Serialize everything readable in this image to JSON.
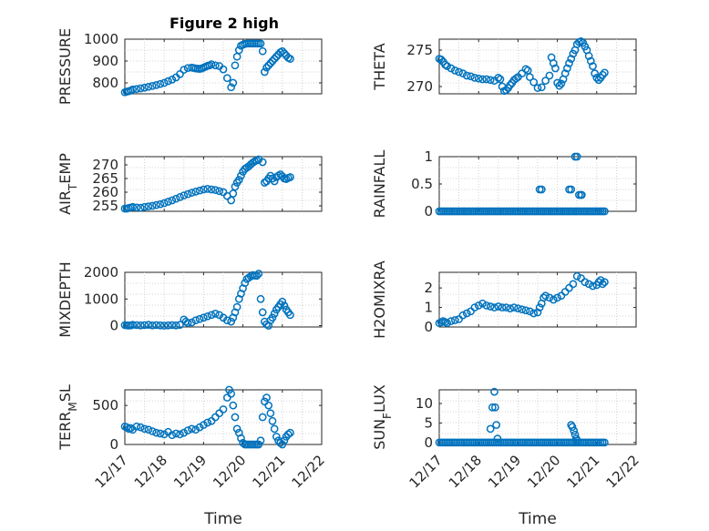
{
  "figure": {
    "title": "Figure 2 high"
  },
  "chart_data": [
    {
      "type": "scatter",
      "ylabel": "PRESSURE",
      "xlabel": "",
      "xlim": [
        0,
        5
      ],
      "ylim": [
        750,
        1000
      ],
      "yticks": [
        800,
        900,
        1000
      ],
      "yticklabels": [
        "800",
        "900",
        "1000"
      ],
      "xticklabels": [],
      "grid": true,
      "x": [
        0.0,
        0.05,
        0.1,
        0.15,
        0.2,
        0.3,
        0.4,
        0.5,
        0.6,
        0.7,
        0.8,
        0.9,
        1.0,
        1.1,
        1.2,
        1.3,
        1.4,
        1.5,
        1.6,
        1.7,
        1.75,
        1.8,
        1.85,
        1.9,
        1.95,
        2.0,
        2.05,
        2.1,
        2.15,
        2.2,
        2.3,
        2.4,
        2.5,
        2.6,
        2.7,
        2.75,
        2.8,
        2.85,
        2.9,
        2.95,
        3.0,
        3.05,
        3.1,
        3.15,
        3.2,
        3.25,
        3.3,
        3.35,
        3.4,
        3.45,
        3.5,
        3.55,
        3.6,
        3.65,
        3.7,
        3.75,
        3.8,
        3.85,
        3.9,
        3.95,
        4.0,
        4.05,
        4.1,
        4.15,
        4.2
      ],
      "y": [
        757,
        760,
        762,
        765,
        770,
        772,
        775,
        778,
        782,
        786,
        790,
        795,
        800,
        808,
        815,
        825,
        840,
        860,
        868,
        870,
        868,
        866,
        865,
        864,
        866,
        870,
        874,
        878,
        880,
        885,
        880,
        877,
        862,
        822,
        780,
        800,
        880,
        920,
        950,
        970,
        975,
        978,
        980,
        980,
        980,
        980,
        980,
        980,
        980,
        980,
        945,
        850,
        870,
        880,
        890,
        900,
        910,
        920,
        930,
        940,
        945,
        935,
        925,
        915,
        910
      ]
    },
    {
      "type": "scatter",
      "ylabel": "THETA",
      "xlabel": "",
      "xlim": [
        0,
        5
      ],
      "ylim": [
        269,
        276.5
      ],
      "yticks": [
        270,
        275
      ],
      "yticklabels": [
        "270",
        "275"
      ],
      "xticklabels": [],
      "grid": true,
      "x": [
        0.0,
        0.05,
        0.1,
        0.15,
        0.2,
        0.3,
        0.4,
        0.5,
        0.6,
        0.7,
        0.8,
        0.9,
        1.0,
        1.1,
        1.2,
        1.3,
        1.4,
        1.5,
        1.55,
        1.6,
        1.65,
        1.7,
        1.75,
        1.8,
        1.85,
        1.9,
        1.95,
        2.0,
        2.1,
        2.2,
        2.25,
        2.3,
        2.4,
        2.5,
        2.6,
        2.7,
        2.8,
        2.85,
        2.9,
        2.95,
        3.0,
        3.05,
        3.1,
        3.15,
        3.2,
        3.25,
        3.3,
        3.35,
        3.4,
        3.45,
        3.5,
        3.55,
        3.6,
        3.65,
        3.7,
        3.75,
        3.8,
        3.85,
        3.9,
        3.95,
        4.0,
        4.05,
        4.1,
        4.15,
        4.2
      ],
      "y": [
        273.8,
        273.7,
        273.4,
        273.0,
        272.8,
        272.5,
        272.2,
        272.0,
        271.8,
        271.5,
        271.4,
        271.2,
        271.1,
        271.0,
        271.0,
        270.9,
        270.8,
        271.2,
        271.0,
        270.0,
        269.4,
        269.5,
        269.8,
        270.2,
        270.5,
        270.9,
        271.1,
        271.3,
        271.8,
        272.4,
        272.2,
        271.3,
        270.6,
        269.8,
        269.9,
        270.8,
        271.5,
        274.0,
        273.2,
        272.5,
        270.5,
        270.1,
        270.4,
        271.0,
        271.8,
        272.5,
        273.2,
        273.8,
        274.5,
        275.0,
        275.8,
        276.1,
        276.2,
        276.0,
        275.5,
        275.0,
        274.2,
        273.5,
        272.8,
        271.8,
        271.2,
        270.9,
        271.2,
        271.6,
        271.9
      ]
    },
    {
      "type": "scatter",
      "ylabel": "AIR_T_EMP",
      "xlabel": "",
      "xlim": [
        0,
        5
      ],
      "ylim": [
        253,
        273
      ],
      "yticks": [
        255,
        260,
        265,
        270
      ],
      "yticklabels": [
        "255",
        "260",
        "265",
        "270"
      ],
      "xticklabels": [],
      "grid": true,
      "x": [
        0.0,
        0.05,
        0.1,
        0.15,
        0.2,
        0.3,
        0.4,
        0.5,
        0.6,
        0.7,
        0.8,
        0.9,
        1.0,
        1.1,
        1.2,
        1.3,
        1.4,
        1.5,
        1.6,
        1.7,
        1.8,
        1.9,
        2.0,
        2.1,
        2.2,
        2.3,
        2.4,
        2.5,
        2.6,
        2.7,
        2.75,
        2.8,
        2.85,
        2.9,
        2.95,
        3.0,
        3.05,
        3.1,
        3.15,
        3.2,
        3.25,
        3.3,
        3.35,
        3.4,
        3.5,
        3.55,
        3.6,
        3.65,
        3.7,
        3.75,
        3.8,
        3.85,
        3.9,
        3.95,
        4.0,
        4.05,
        4.1,
        4.15,
        4.2
      ],
      "y": [
        254.0,
        254.0,
        254.2,
        254.4,
        254.6,
        254.4,
        254.3,
        254.6,
        254.8,
        255.0,
        255.3,
        255.6,
        256.0,
        256.5,
        257.0,
        257.6,
        258.2,
        258.8,
        259.3,
        259.8,
        260.2,
        260.6,
        261.0,
        261.2,
        261.0,
        260.8,
        260.4,
        260.0,
        258.6,
        257.0,
        259.5,
        262.0,
        263.5,
        264.5,
        266.0,
        267.5,
        268.5,
        269.0,
        269.5,
        270.2,
        270.8,
        271.3,
        271.6,
        272.0,
        271.0,
        263.5,
        264.0,
        265.0,
        266.0,
        265.0,
        264.0,
        265.5,
        266.0,
        266.5,
        265.8,
        265.0,
        264.8,
        265.2,
        265.5
      ]
    },
    {
      "type": "scatter",
      "ylabel": "RAINFALL",
      "xlabel": "",
      "xlim": [
        0,
        5
      ],
      "ylim": [
        0,
        1
      ],
      "yticks": [
        0,
        0.5,
        1
      ],
      "yticklabels": [
        "0",
        "0.5",
        "1"
      ],
      "xticklabels": [],
      "grid": true,
      "x": [
        0.0,
        0.05,
        0.1,
        0.15,
        0.2,
        0.25,
        0.3,
        0.35,
        0.4,
        0.45,
        0.5,
        0.55,
        0.6,
        0.65,
        0.7,
        0.75,
        0.8,
        0.85,
        0.9,
        0.95,
        1.0,
        1.05,
        1.1,
        1.15,
        1.2,
        1.25,
        1.3,
        1.35,
        1.4,
        1.45,
        1.5,
        1.55,
        1.6,
        1.65,
        1.7,
        1.75,
        1.8,
        1.85,
        1.9,
        1.95,
        2.0,
        2.05,
        2.1,
        2.15,
        2.2,
        2.25,
        2.3,
        2.35,
        2.4,
        2.45,
        2.5,
        2.55,
        2.6,
        2.65,
        2.7,
        2.75,
        2.8,
        2.85,
        2.9,
        2.95,
        3.0,
        3.05,
        3.1,
        3.15,
        3.2,
        3.25,
        3.3,
        3.35,
        3.4,
        3.45,
        3.5,
        3.55,
        3.6,
        3.65,
        3.7,
        3.75,
        3.8,
        3.85,
        3.9,
        3.95,
        4.0,
        4.05,
        4.1,
        4.15,
        4.2,
        2.55,
        2.6,
        3.3,
        3.35,
        3.45,
        3.5,
        3.55,
        3.6,
        3.62
      ],
      "y": [
        0,
        0,
        0,
        0,
        0,
        0,
        0,
        0,
        0,
        0,
        0,
        0,
        0,
        0,
        0,
        0,
        0,
        0,
        0,
        0,
        0,
        0,
        0,
        0,
        0,
        0,
        0,
        0,
        0,
        0,
        0,
        0,
        0,
        0,
        0,
        0,
        0,
        0,
        0,
        0,
        0,
        0,
        0,
        0,
        0,
        0,
        0,
        0,
        0,
        0,
        0,
        0,
        0,
        0,
        0,
        0,
        0,
        0,
        0,
        0,
        0,
        0,
        0,
        0,
        0,
        0,
        0,
        0,
        0,
        0,
        0,
        0,
        0,
        0,
        0,
        0,
        0,
        0,
        0,
        0,
        0,
        0,
        0,
        0,
        0,
        0.4,
        0.4,
        0.4,
        0.4,
        1,
        1,
        0.3,
        0.3,
        0.3
      ]
    },
    {
      "type": "scatter",
      "ylabel": "MIXDEPTH",
      "xlabel": "",
      "xlim": [
        0,
        5
      ],
      "ylim": [
        -50,
        2000
      ],
      "yticks": [
        0,
        1000,
        2000
      ],
      "yticklabels": [
        "0",
        "1000",
        "2000"
      ],
      "xticklabels": [],
      "grid": true,
      "x": [
        0.0,
        0.05,
        0.1,
        0.15,
        0.2,
        0.3,
        0.4,
        0.5,
        0.6,
        0.7,
        0.8,
        0.9,
        1.0,
        1.1,
        1.2,
        1.3,
        1.4,
        1.5,
        1.55,
        1.6,
        1.7,
        1.8,
        1.9,
        2.0,
        2.1,
        2.2,
        2.3,
        2.4,
        2.5,
        2.6,
        2.7,
        2.75,
        2.8,
        2.85,
        2.9,
        2.95,
        3.0,
        3.05,
        3.1,
        3.15,
        3.2,
        3.25,
        3.3,
        3.35,
        3.4,
        3.45,
        3.5,
        3.55,
        3.6,
        3.65,
        3.7,
        3.75,
        3.8,
        3.85,
        3.9,
        3.95,
        4.0,
        4.05,
        4.1,
        4.15,
        4.2
      ],
      "y": [
        20,
        10,
        5,
        10,
        30,
        20,
        10,
        20,
        30,
        10,
        20,
        10,
        0,
        10,
        20,
        10,
        30,
        230,
        150,
        100,
        120,
        200,
        250,
        300,
        350,
        400,
        450,
        400,
        300,
        200,
        150,
        300,
        500,
        700,
        1000,
        1200,
        1400,
        1600,
        1750,
        1800,
        1850,
        1900,
        1880,
        1870,
        1950,
        1000,
        500,
        150,
        50,
        0,
        200,
        300,
        450,
        600,
        700,
        800,
        900,
        750,
        600,
        500,
        400
      ]
    },
    {
      "type": "scatter",
      "ylabel": "H2OMIXRA",
      "xlabel": "",
      "xlim": [
        0,
        5
      ],
      "ylim": [
        0,
        2.8
      ],
      "yticks": [
        0,
        1,
        2
      ],
      "yticklabels": [
        "0",
        "1",
        "2"
      ],
      "xticklabels": [],
      "grid": true,
      "x": [
        0.0,
        0.05,
        0.1,
        0.15,
        0.2,
        0.3,
        0.4,
        0.5,
        0.6,
        0.7,
        0.8,
        0.9,
        1.0,
        1.1,
        1.2,
        1.3,
        1.4,
        1.5,
        1.6,
        1.7,
        1.8,
        1.9,
        2.0,
        2.1,
        2.2,
        2.3,
        2.4,
        2.5,
        2.55,
        2.6,
        2.65,
        2.7,
        2.8,
        2.9,
        3.0,
        3.1,
        3.2,
        3.3,
        3.4,
        3.5,
        3.6,
        3.7,
        3.8,
        3.9,
        4.0,
        4.05,
        4.1,
        4.15,
        4.2
      ],
      "y": [
        0.2,
        0.25,
        0.3,
        0.25,
        0.2,
        0.3,
        0.35,
        0.4,
        0.6,
        0.7,
        0.8,
        1.0,
        1.1,
        1.2,
        1.1,
        1.05,
        1.0,
        1.05,
        1.0,
        1.0,
        0.95,
        1.0,
        0.95,
        0.9,
        0.85,
        0.8,
        0.7,
        0.75,
        1.0,
        1.2,
        1.5,
        1.6,
        1.5,
        1.4,
        1.5,
        1.6,
        1.8,
        2.0,
        2.2,
        2.6,
        2.5,
        2.3,
        2.2,
        2.1,
        2.15,
        2.3,
        2.4,
        2.2,
        2.3
      ]
    },
    {
      "type": "scatter",
      "ylabel": "TERR_M_SL",
      "xlabel": "Time",
      "xlim": [
        0,
        5
      ],
      "ylim": [
        0,
        700
      ],
      "yticks": [
        0,
        500
      ],
      "yticklabels": [
        "0",
        "500"
      ],
      "xticks": [
        0,
        1,
        2,
        3,
        4,
        5
      ],
      "xticklabels": [
        "12/17",
        "12/18",
        "12/19",
        "12/20",
        "12/21",
        "12/22"
      ],
      "grid": true,
      "x": [
        0.0,
        0.05,
        0.1,
        0.15,
        0.2,
        0.3,
        0.4,
        0.5,
        0.6,
        0.7,
        0.8,
        0.9,
        1.0,
        1.1,
        1.2,
        1.3,
        1.4,
        1.5,
        1.6,
        1.7,
        1.8,
        1.9,
        2.0,
        2.1,
        2.2,
        2.3,
        2.4,
        2.5,
        2.6,
        2.65,
        2.7,
        2.75,
        2.8,
        2.85,
        2.9,
        2.95,
        3.0,
        3.05,
        3.1,
        3.15,
        3.2,
        3.25,
        3.3,
        3.35,
        3.4,
        3.45,
        3.5,
        3.55,
        3.6,
        3.65,
        3.7,
        3.75,
        3.8,
        3.85,
        3.9,
        3.95,
        4.0,
        4.05,
        4.1,
        4.15,
        4.2
      ],
      "y": [
        230,
        220,
        200,
        210,
        190,
        230,
        220,
        200,
        190,
        170,
        150,
        140,
        130,
        160,
        120,
        140,
        130,
        150,
        180,
        200,
        190,
        220,
        250,
        280,
        300,
        350,
        400,
        450,
        600,
        700,
        650,
        500,
        350,
        200,
        150,
        80,
        20,
        0,
        0,
        0,
        0,
        0,
        0,
        0,
        0,
        50,
        350,
        550,
        600,
        500,
        400,
        300,
        200,
        100,
        50,
        20,
        0,
        50,
        100,
        130,
        150
      ]
    },
    {
      "type": "scatter",
      "ylabel": "SUN_F_LUX",
      "xlabel": "Time",
      "xlim": [
        0,
        5
      ],
      "ylim": [
        -0.5,
        13.5
      ],
      "yticks": [
        0,
        5,
        10
      ],
      "yticklabels": [
        "0",
        "5",
        "10"
      ],
      "xticks": [
        0,
        1,
        2,
        3,
        4,
        5
      ],
      "xticklabels": [
        "12/17",
        "12/18",
        "12/19",
        "12/20",
        "12/21",
        "12/22"
      ],
      "grid": true,
      "x": [
        0.0,
        0.05,
        0.1,
        0.15,
        0.2,
        0.25,
        0.3,
        0.35,
        0.4,
        0.45,
        0.5,
        0.55,
        0.6,
        0.65,
        0.7,
        0.75,
        0.8,
        0.85,
        0.9,
        0.95,
        1.0,
        1.05,
        1.1,
        1.15,
        1.2,
        1.25,
        1.3,
        1.35,
        1.4,
        1.45,
        1.5,
        1.55,
        1.6,
        1.65,
        1.7,
        1.75,
        1.8,
        1.85,
        1.9,
        1.95,
        2.0,
        2.05,
        2.1,
        2.15,
        2.2,
        2.25,
        2.3,
        2.35,
        2.4,
        2.45,
        2.5,
        2.55,
        2.6,
        2.65,
        2.7,
        2.75,
        2.8,
        2.85,
        2.9,
        2.95,
        3.0,
        3.05,
        3.1,
        3.15,
        3.2,
        3.25,
        3.3,
        3.35,
        3.4,
        3.45,
        3.5,
        3.55,
        3.6,
        3.65,
        3.7,
        3.75,
        3.8,
        3.85,
        3.9,
        3.95,
        4.0,
        4.05,
        4.1,
        4.15,
        4.2,
        1.3,
        1.35,
        1.4,
        1.42,
        1.45,
        1.48,
        3.35,
        3.38,
        3.42,
        3.45,
        3.48,
        3.5
      ],
      "y": [
        0,
        0,
        0,
        0,
        0,
        0,
        0,
        0,
        0,
        0,
        0,
        0,
        0,
        0,
        0,
        0,
        0,
        0,
        0,
        0,
        0,
        0,
        0,
        0,
        0,
        0,
        0,
        0,
        0,
        0,
        0,
        0,
        0,
        0,
        0,
        0,
        0,
        0,
        0,
        0,
        0,
        0,
        0,
        0,
        0,
        0,
        0,
        0,
        0,
        0,
        0,
        0,
        0,
        0,
        0,
        0,
        0,
        0,
        0,
        0,
        0,
        0,
        0,
        0,
        0,
        0,
        0,
        0,
        0,
        0,
        0,
        0,
        0,
        0,
        0,
        0,
        0,
        0,
        0,
        0,
        0,
        0,
        0,
        0,
        0,
        3.5,
        9,
        13,
        9,
        4.5,
        1,
        4.5,
        4,
        3,
        2,
        1,
        0.5
      ]
    }
  ]
}
